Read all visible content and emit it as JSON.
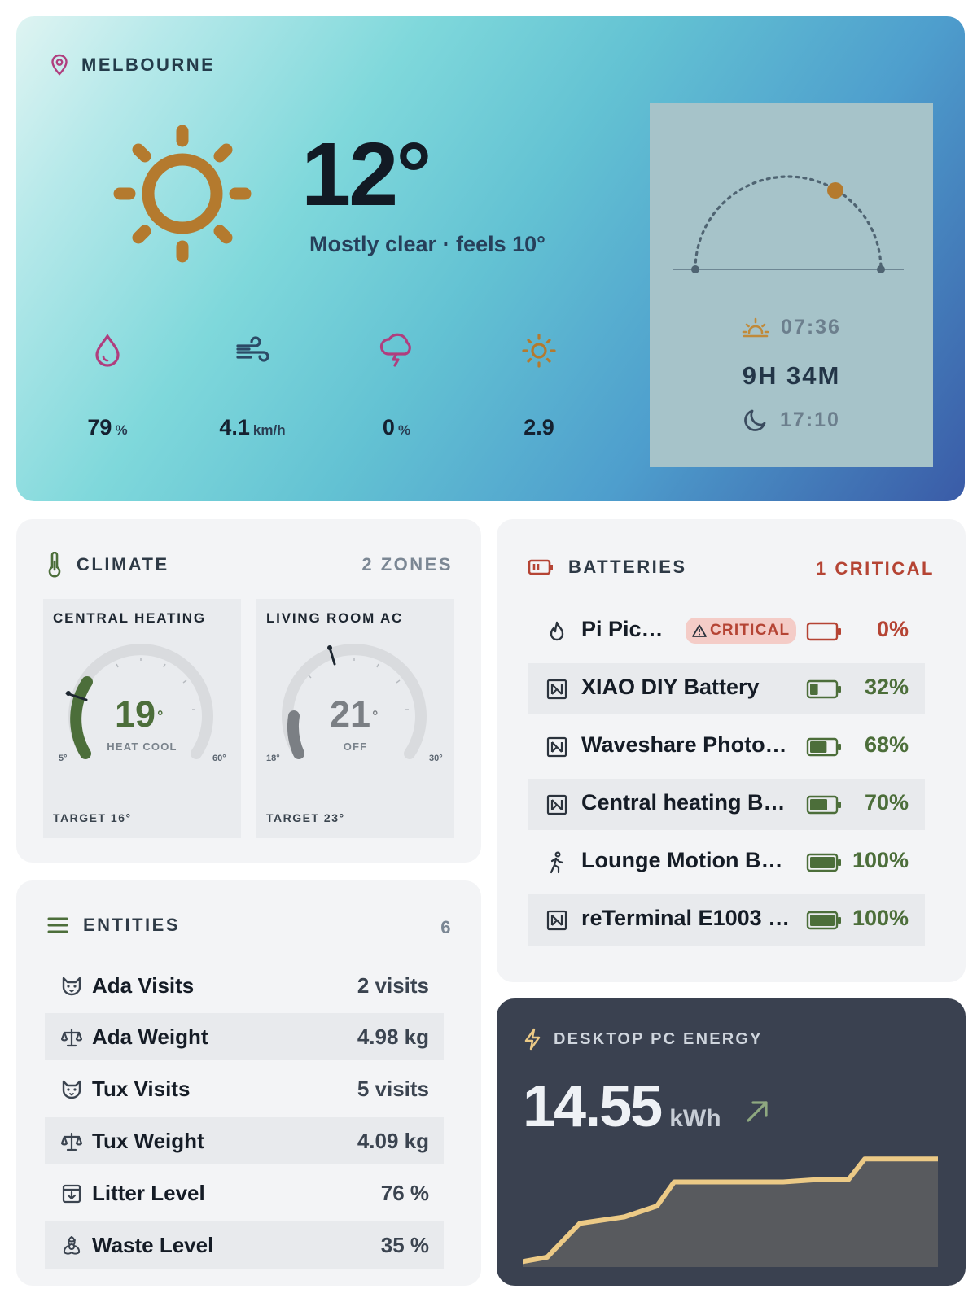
{
  "weather": {
    "location": "MELBOURNE",
    "temperature": "12°",
    "condition": "Mostly clear · feels 10°",
    "stats": [
      {
        "icon": "humidity-icon",
        "value": "79",
        "unit": "%"
      },
      {
        "icon": "wind-icon",
        "value": "4.1",
        "unit": "km/h"
      },
      {
        "icon": "rain-icon",
        "value": "0",
        "unit": "%"
      },
      {
        "icon": "uv-icon",
        "value": "2.9",
        "unit": ""
      }
    ],
    "sun": {
      "sunrise": "07:36",
      "day_length": "9H 34M",
      "sunset": "17:10"
    }
  },
  "climate": {
    "title": "CLIMATE",
    "zones_label": "2 ZONES",
    "zones": [
      {
        "name": "CENTRAL HEATING",
        "value": "19",
        "mode": "HEAT COOL",
        "min": "5°",
        "max": "60°",
        "target": "TARGET 16°",
        "color": "#4c6e3a"
      },
      {
        "name": "LIVING ROOM AC",
        "value": "21",
        "mode": "OFF",
        "min": "18°",
        "max": "30°",
        "target": "TARGET 23°",
        "color": "#7b7f84"
      }
    ]
  },
  "batteries": {
    "title": "BATTERIES",
    "critical_label": "1 CRITICAL",
    "items": [
      {
        "name": "Pi Pic…",
        "badge": "CRITICAL",
        "percent": "0%",
        "level": 0,
        "icon": "fire-icon"
      },
      {
        "name": "XIAO DIY Battery",
        "percent": "32%",
        "level": 32,
        "icon": "chip-icon"
      },
      {
        "name": "Waveshare Photo…",
        "percent": "68%",
        "level": 68,
        "icon": "chip-icon"
      },
      {
        "name": "Central heating B…",
        "percent": "70%",
        "level": 70,
        "icon": "chip-icon"
      },
      {
        "name": "Lounge Motion B…",
        "percent": "100%",
        "level": 100,
        "icon": "motion-icon"
      },
      {
        "name": "reTerminal E1003 …",
        "percent": "100%",
        "level": 100,
        "icon": "chip-icon"
      }
    ]
  },
  "entities": {
    "title": "ENTITIES",
    "count": "6",
    "items": [
      {
        "name": "Ada Visits",
        "value": "2 visits",
        "icon": "cat-icon"
      },
      {
        "name": "Ada Weight",
        "value": "4.98 kg",
        "icon": "scale-icon"
      },
      {
        "name": "Tux Visits",
        "value": "5 visits",
        "icon": "cat-icon"
      },
      {
        "name": "Tux Weight",
        "value": "4.09 kg",
        "icon": "scale-icon"
      },
      {
        "name": "Litter Level",
        "value": "76 %",
        "icon": "tray-icon"
      },
      {
        "name": "Waste Level",
        "value": "35 %",
        "icon": "biohazard-icon"
      }
    ]
  },
  "energy": {
    "title": "DESKTOP PC ENERGY",
    "value": "14.55",
    "unit": "kWh",
    "trend": "up",
    "chart_data": {
      "type": "area",
      "values": [
        0.05,
        0.09,
        0.4,
        0.46,
        0.56,
        0.78,
        0.78,
        0.78,
        0.8,
        0.8,
        0.99,
        0.99
      ],
      "line_color": "#ecca86",
      "fill_color": "#585a5e"
    }
  }
}
